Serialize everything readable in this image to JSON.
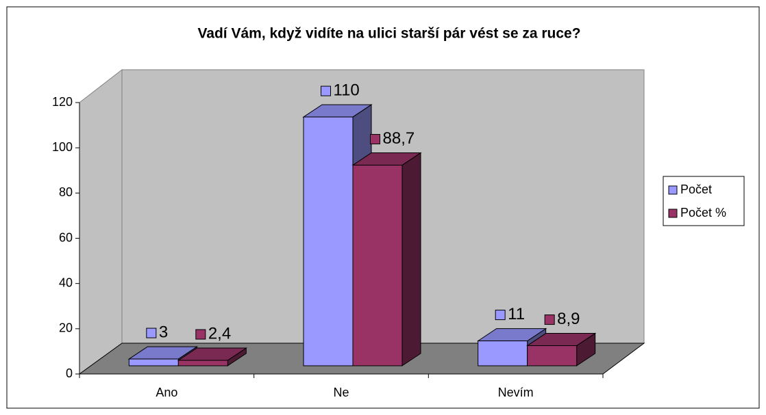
{
  "chart_data": {
    "type": "bar3d",
    "title": "Vadí Vám, když vidíte na ulici starší pár vést se za ruce?",
    "categories": [
      "Ano",
      "Ne",
      "Nevím"
    ],
    "series": [
      {
        "name": "Počet",
        "color": "#9999ff",
        "values": [
          3,
          110,
          11
        ]
      },
      {
        "name": "Počet %",
        "color": "#993366",
        "values": [
          2.4,
          88.7,
          8.9
        ],
        "value_labels": [
          "2,4",
          "88,7",
          "8,9"
        ]
      }
    ],
    "ylim": [
      0,
      120
    ],
    "yticks": [
      0,
      20,
      40,
      60,
      80,
      100,
      120
    ],
    "legend": "right"
  }
}
